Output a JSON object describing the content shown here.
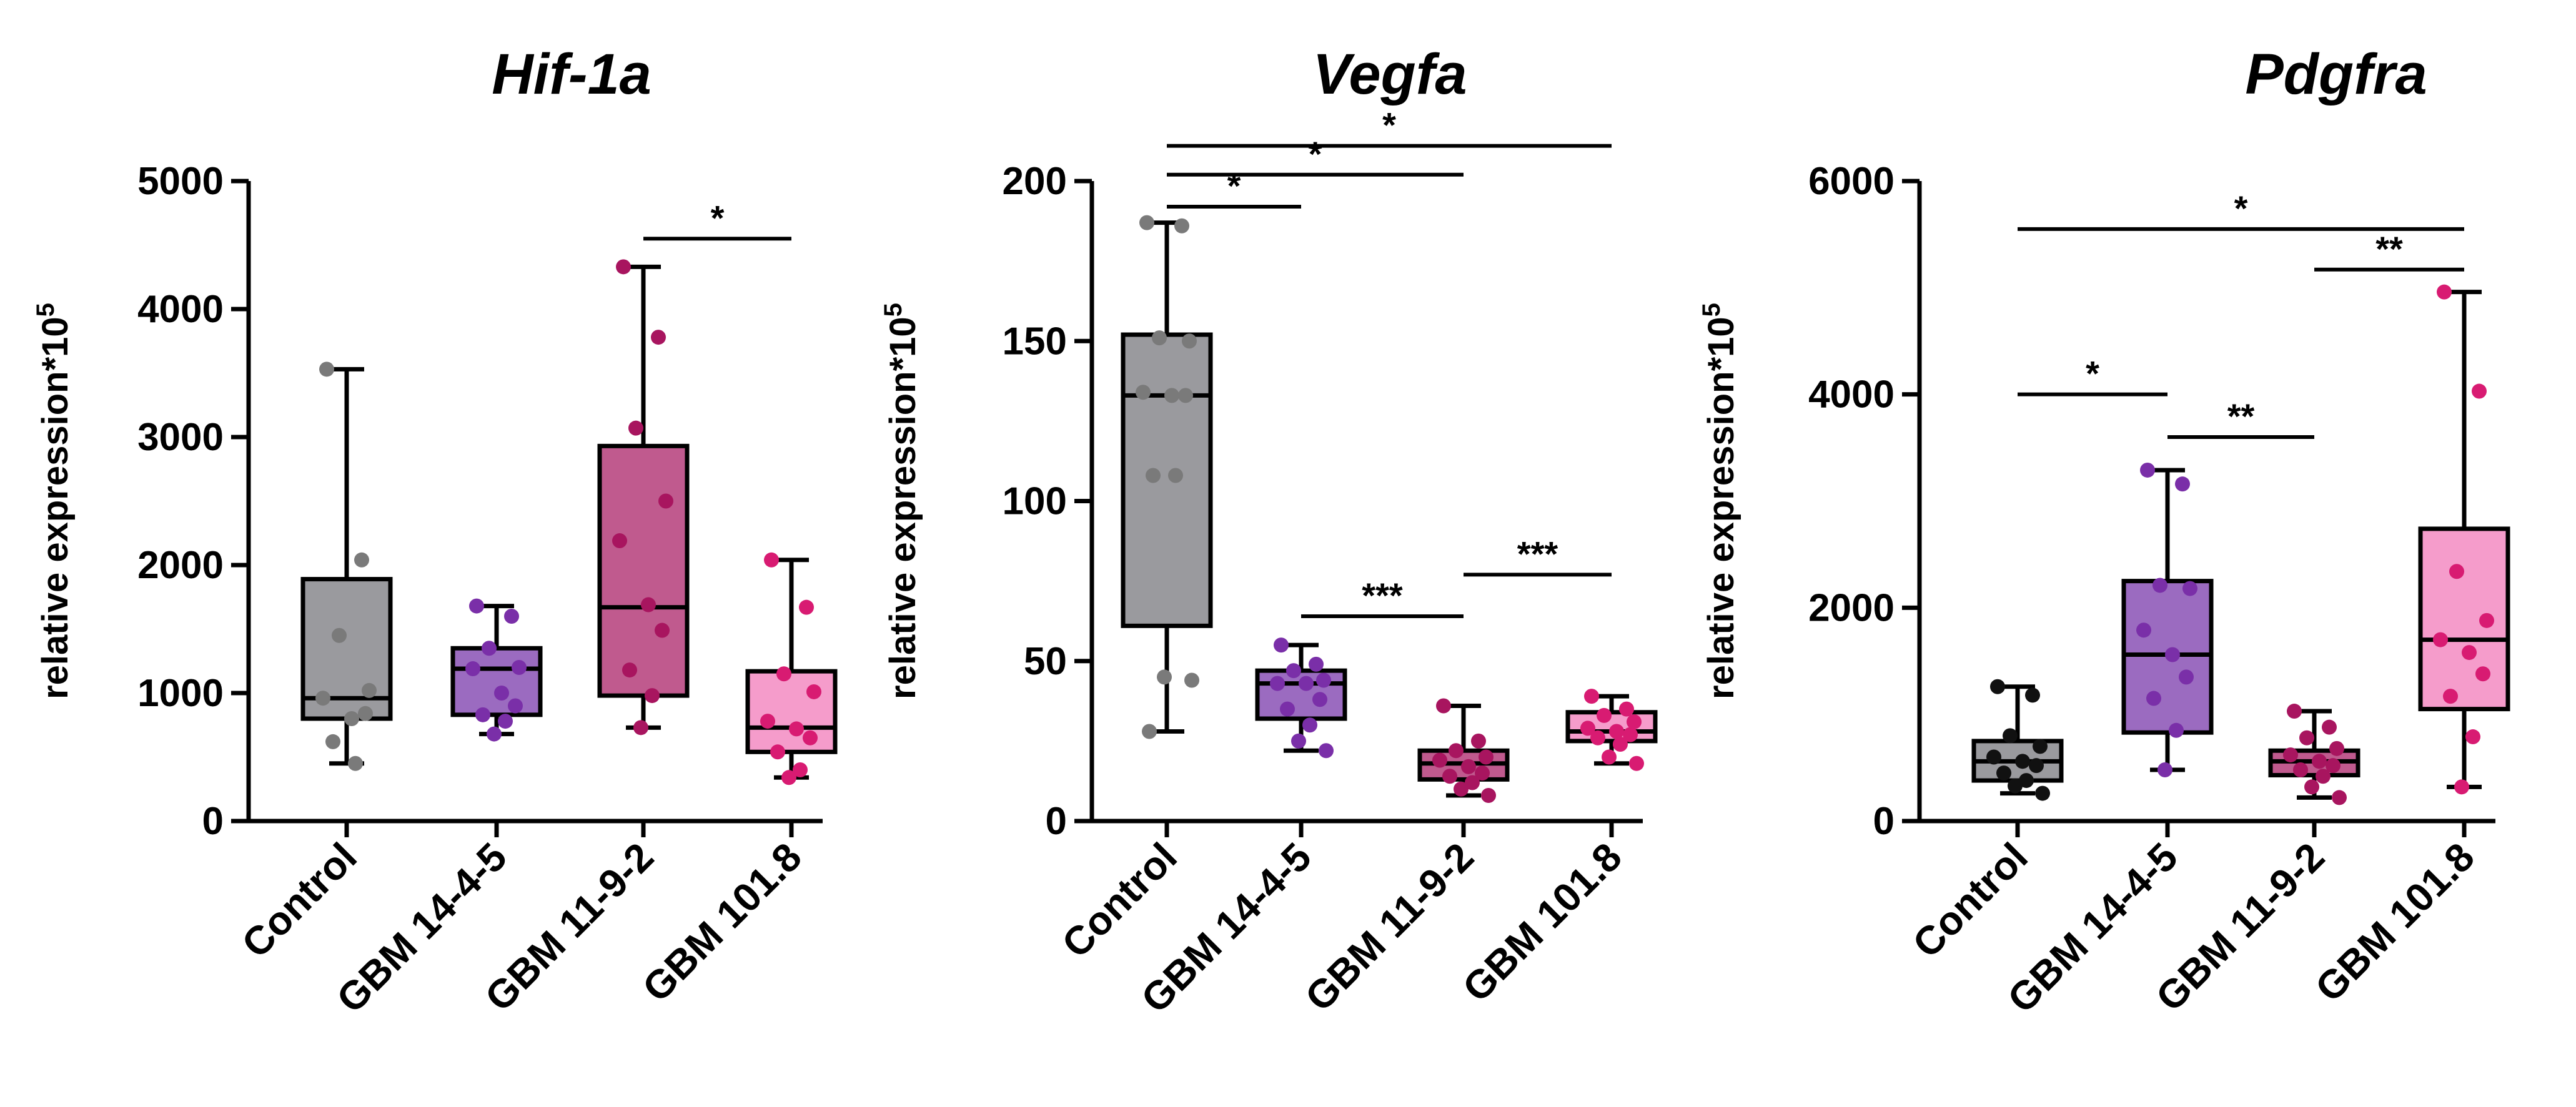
{
  "chart_data": [
    {
      "type": "box",
      "title": "Hif-1a",
      "ylabel": "relative expression*10",
      "ylabel_sup": "5",
      "ylim": [
        0,
        5000
      ],
      "yticks": [
        0,
        1000,
        2000,
        3000,
        4000,
        5000
      ],
      "yticklabels": [
        "0",
        "1000",
        "2000",
        "3000",
        "4000",
        "5000"
      ],
      "categories": [
        "Control",
        "GBM 14-4-5",
        "GBM 11-9-2",
        "GBM 101.8"
      ],
      "colors": [
        "#9a9a9e",
        "#9b6bc0",
        "#c05a8e",
        "#f59ccb"
      ],
      "point_colors": [
        "#7a7a7a",
        "#7a2fa8",
        "#a8155f",
        "#d81b72"
      ],
      "boxes": [
        {
          "min": 450,
          "q1": 800,
          "median": 960,
          "q3": 1890,
          "max": 3530
        },
        {
          "min": 680,
          "q1": 830,
          "median": 1190,
          "q3": 1350,
          "max": 1680
        },
        {
          "min": 730,
          "q1": 980,
          "median": 1670,
          "q3": 2930,
          "max": 4330
        },
        {
          "min": 340,
          "q1": 540,
          "median": 730,
          "q3": 1170,
          "max": 2040
        }
      ],
      "points": [
        [
          3530,
          2040,
          1450,
          1020,
          960,
          800,
          840,
          620,
          450
        ],
        [
          1680,
          1600,
          1350,
          1200,
          1190,
          1000,
          900,
          830,
          780,
          680
        ],
        [
          4330,
          3780,
          3070,
          2500,
          2190,
          1690,
          1490,
          1180,
          980,
          730
        ],
        [
          2040,
          1670,
          1150,
          1010,
          780,
          720,
          650,
          540,
          400,
          340
        ]
      ],
      "significance": [
        {
          "from": 2,
          "to": 3,
          "y": 4550,
          "label": "*"
        }
      ]
    },
    {
      "type": "box",
      "title": "Vegfa",
      "ylabel": "relative expression*10",
      "ylabel_sup": "5",
      "ylim": [
        0,
        200
      ],
      "yticks": [
        0,
        50,
        100,
        150,
        200
      ],
      "yticklabels": [
        "0",
        "50",
        "100",
        "150",
        "200"
      ],
      "categories": [
        "Control",
        "GBM 14-4-5",
        "GBM 11-9-2",
        "GBM 101.8"
      ],
      "colors": [
        "#9a9a9e",
        "#9b6bc0",
        "#c05a8e",
        "#f59ccb"
      ],
      "point_colors": [
        "#7a7a7a",
        "#7a2fa8",
        "#a8155f",
        "#d81b72"
      ],
      "boxes": [
        {
          "min": 28,
          "q1": 61,
          "median": 133,
          "q3": 152,
          "max": 187
        },
        {
          "min": 22,
          "q1": 32,
          "median": 43,
          "q3": 47,
          "max": 55
        },
        {
          "min": 8,
          "q1": 13,
          "median": 18,
          "q3": 22,
          "max": 36
        },
        {
          "min": 18,
          "q1": 25,
          "median": 28,
          "q3": 34,
          "max": 39
        }
      ],
      "points": [
        [
          187,
          186,
          151,
          150,
          134,
          133,
          133,
          108,
          108,
          45,
          44,
          28
        ],
        [
          55,
          49,
          47,
          44,
          43,
          43,
          38,
          35,
          30,
          25,
          22
        ],
        [
          36,
          25,
          22,
          20,
          19,
          17,
          15,
          14,
          12,
          10,
          8
        ],
        [
          39,
          35,
          33,
          31,
          29,
          28,
          27,
          26,
          24,
          20,
          18
        ]
      ],
      "significance": [
        {
          "from": 0,
          "to": 1,
          "y": 192,
          "label": "*"
        },
        {
          "from": 0,
          "to": 2,
          "y": 202,
          "label": "*"
        },
        {
          "from": 0,
          "to": 3,
          "y": 211,
          "label": "*"
        },
        {
          "from": 1,
          "to": 2,
          "y": 64,
          "label": "***"
        },
        {
          "from": 2,
          "to": 3,
          "y": 77,
          "label": "***"
        }
      ]
    },
    {
      "type": "box",
      "title": "Pdgfra",
      "ylabel": "relative expression*10",
      "ylabel_sup": "5",
      "ylim": [
        0,
        6000
      ],
      "yticks": [
        0,
        2000,
        4000,
        6000
      ],
      "yticklabels": [
        "0",
        "2000",
        "4000",
        "6000"
      ],
      "categories": [
        "Control",
        "GBM 14-4-5",
        "GBM 11-9-2",
        "GBM 101.8"
      ],
      "colors": [
        "#9a9a9e",
        "#9b6bc0",
        "#c05a8e",
        "#f59ccb"
      ],
      "point_colors": [
        "#111111",
        "#7a2fa8",
        "#a8155f",
        "#d81b72"
      ],
      "boxes": [
        {
          "min": 260,
          "q1": 380,
          "median": 560,
          "q3": 750,
          "max": 1260
        },
        {
          "min": 480,
          "q1": 830,
          "median": 1560,
          "q3": 2250,
          "max": 3290
        },
        {
          "min": 220,
          "q1": 430,
          "median": 560,
          "q3": 660,
          "max": 1030
        },
        {
          "min": 320,
          "q1": 1050,
          "median": 1700,
          "q3": 2740,
          "max": 4960
        }
      ],
      "points": [
        [
          1260,
          1180,
          800,
          700,
          600,
          560,
          520,
          450,
          380,
          330,
          260
        ],
        [
          3290,
          3160,
          2210,
          2180,
          1790,
          1560,
          1350,
          1150,
          850,
          480
        ],
        [
          1030,
          880,
          780,
          680,
          620,
          560,
          520,
          480,
          420,
          320,
          220
        ],
        [
          4960,
          4030,
          2340,
          1880,
          1700,
          1580,
          1380,
          1170,
          790,
          320
        ]
      ],
      "significance": [
        {
          "from": 0,
          "to": 1,
          "y": 4000,
          "label": "*"
        },
        {
          "from": 1,
          "to": 2,
          "y": 3600,
          "label": "**"
        },
        {
          "from": 2,
          "to": 3,
          "y": 5170,
          "label": "**"
        },
        {
          "from": 0,
          "to": 3,
          "y": 5550,
          "label": "*"
        }
      ]
    }
  ]
}
